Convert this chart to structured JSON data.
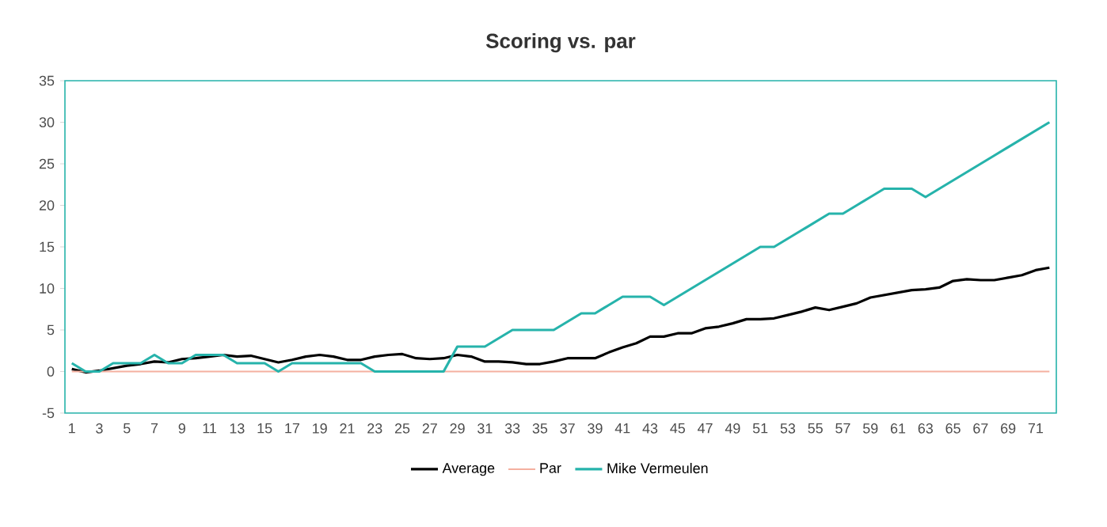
{
  "chart_data": {
    "type": "line",
    "title": "Scoring vs. par",
    "categories": [
      "1",
      null,
      "3",
      null,
      "5",
      null,
      "7",
      null,
      "9",
      null,
      "11",
      null,
      "13",
      null,
      "15",
      null,
      "17",
      null,
      "19",
      null,
      "21",
      null,
      "23",
      null,
      "25",
      null,
      "27",
      null,
      "29",
      null,
      "31",
      null,
      "33",
      null,
      "35",
      null,
      "37",
      null,
      "39",
      null,
      "41",
      null,
      "43",
      null,
      "45",
      null,
      "47",
      null,
      "49",
      null,
      "51",
      null,
      "53",
      null,
      "55",
      null,
      "57",
      null,
      "59",
      null,
      "61",
      null,
      "63",
      null,
      "65",
      null,
      "67",
      null,
      "69",
      null,
      "71",
      null
    ],
    "series": [
      {
        "name": "Average",
        "color": "#000000",
        "values": [
          0.3,
          -0.1,
          0.1,
          0.4,
          0.7,
          0.9,
          1.2,
          1.1,
          1.5,
          1.6,
          1.8,
          2.0,
          1.8,
          1.9,
          1.5,
          1.1,
          1.4,
          1.8,
          2.0,
          1.8,
          1.4,
          1.4,
          1.8,
          2.0,
          2.1,
          1.6,
          1.5,
          1.6,
          2.0,
          1.8,
          1.2,
          1.2,
          1.1,
          0.9,
          0.9,
          1.2,
          1.6,
          1.6,
          1.6,
          2.3,
          2.9,
          3.4,
          4.2,
          4.2,
          4.6,
          4.6,
          5.2,
          5.4,
          5.8,
          6.3,
          6.3,
          6.4,
          6.8,
          7.2,
          7.7,
          7.4,
          7.8,
          8.2,
          8.9,
          9.2,
          9.5,
          9.8,
          9.9,
          10.1,
          10.9,
          11.1,
          11.0,
          11.0,
          11.3,
          11.6,
          12.2,
          12.5
        ]
      },
      {
        "name": "Par",
        "color": "#f4b0a0",
        "values": [
          0,
          0,
          0,
          0,
          0,
          0,
          0,
          0,
          0,
          0,
          0,
          0,
          0,
          0,
          0,
          0,
          0,
          0,
          0,
          0,
          0,
          0,
          0,
          0,
          0,
          0,
          0,
          0,
          0,
          0,
          0,
          0,
          0,
          0,
          0,
          0,
          0,
          0,
          0,
          0,
          0,
          0,
          0,
          0,
          0,
          0,
          0,
          0,
          0,
          0,
          0,
          0,
          0,
          0,
          0,
          0,
          0,
          0,
          0,
          0,
          0,
          0,
          0,
          0,
          0,
          0,
          0,
          0,
          0,
          0,
          0,
          0
        ]
      },
      {
        "name": "Mike Vermeulen",
        "color": "#26b3ab",
        "values": [
          1,
          0,
          0,
          1,
          1,
          1,
          2,
          1,
          1,
          2,
          2,
          2,
          1,
          1,
          1,
          0,
          1,
          1,
          1,
          1,
          1,
          1,
          0,
          0,
          0,
          0,
          0,
          0,
          3,
          3,
          3,
          4,
          5,
          5,
          5,
          5,
          6,
          7,
          7,
          8,
          9,
          9,
          9,
          8,
          9,
          10,
          11,
          12,
          13,
          14,
          15,
          15,
          16,
          17,
          18,
          19,
          19,
          20,
          21,
          22,
          22,
          22,
          21,
          22,
          23,
          24,
          25,
          26,
          27,
          28,
          29,
          30
        ]
      }
    ],
    "ylim": [
      -5,
      35
    ],
    "yticks": [
      -5,
      0,
      5,
      10,
      15,
      20,
      25,
      30,
      35
    ],
    "legend": "bottom",
    "marker": "none",
    "line_style": "solid"
  }
}
